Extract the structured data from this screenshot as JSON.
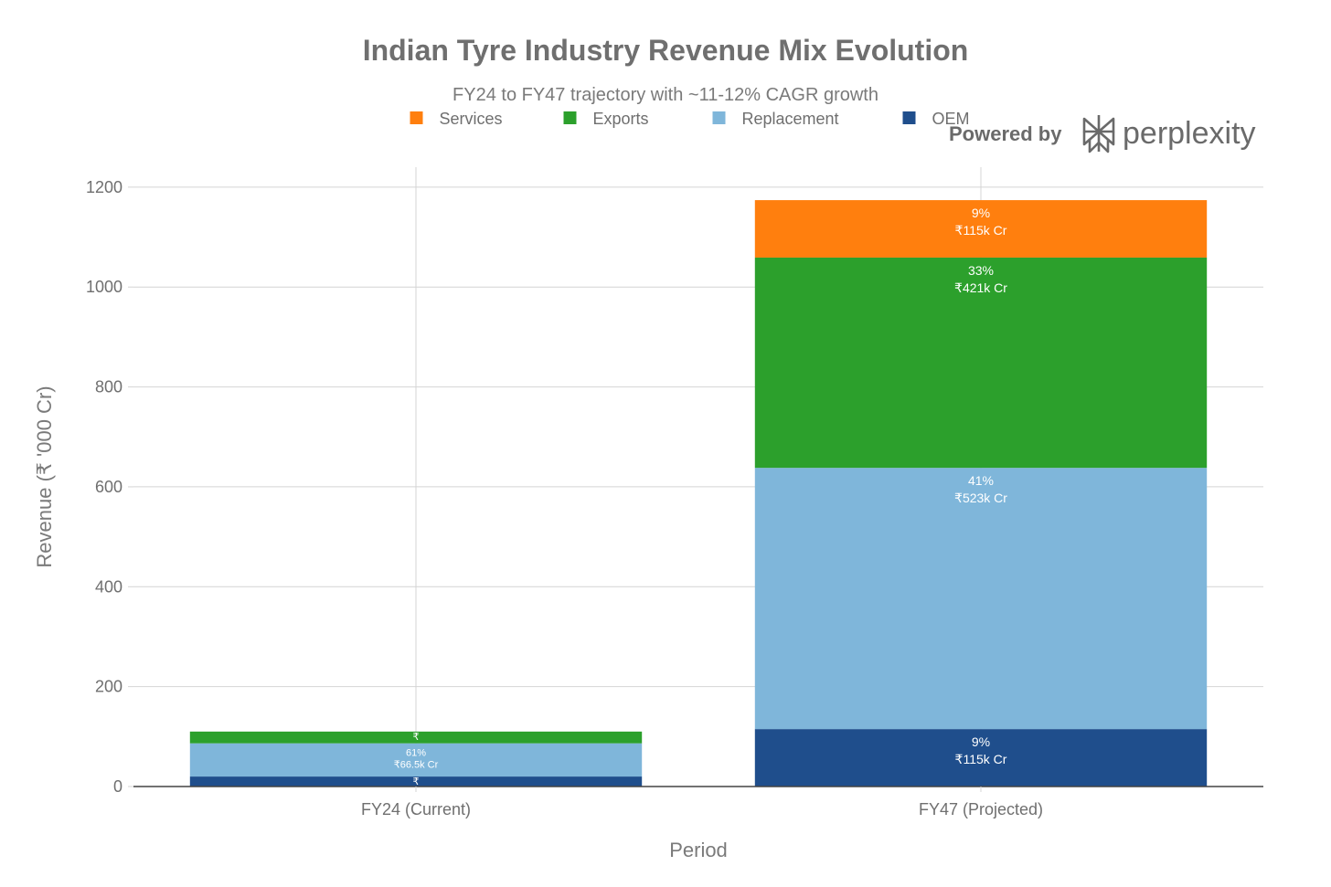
{
  "brand": {
    "prefix": "Powered by",
    "name": "perplexity",
    "icon": "perplexity-logo-icon"
  },
  "chart_data": {
    "type": "bar",
    "stacked": true,
    "title": "Indian Tyre Industry Revenue Mix Evolution",
    "subtitle": "FY24 to FY47 trajectory with ~11-12% CAGR growth",
    "xlabel": "Period",
    "ylabel": "Revenue (₹ '000 Cr)",
    "ylim": [
      0,
      1240
    ],
    "yticks": [
      0,
      200,
      400,
      600,
      800,
      1000,
      1200
    ],
    "grid": true,
    "legend_position": "top",
    "categories": [
      "FY24 (Current)",
      "FY47 (Projected)"
    ],
    "series": [
      {
        "name": "OEM",
        "color": "#1f4e8c",
        "values": [
          20,
          115
        ],
        "labels": [
          [
            "₹"
          ],
          [
            "9%",
            "₹115k Cr"
          ]
        ]
      },
      {
        "name": "Replacement",
        "color": "#7fb6da",
        "values": [
          66.5,
          523
        ],
        "labels": [
          [
            "61%",
            "₹66.5k Cr"
          ],
          [
            "41%",
            "₹523k Cr"
          ]
        ]
      },
      {
        "name": "Exports",
        "color": "#2ca02c",
        "values": [
          23.5,
          421
        ],
        "labels": [
          [
            "₹"
          ],
          [
            "33%",
            "₹421k Cr"
          ]
        ]
      },
      {
        "name": "Services",
        "color": "#ff7f0e",
        "values": [
          0,
          115
        ],
        "labels": [
          [],
          [
            "9%",
            "₹115k Cr"
          ]
        ]
      }
    ],
    "legend_order": [
      "Services",
      "Exports",
      "Replacement",
      "OEM"
    ]
  }
}
